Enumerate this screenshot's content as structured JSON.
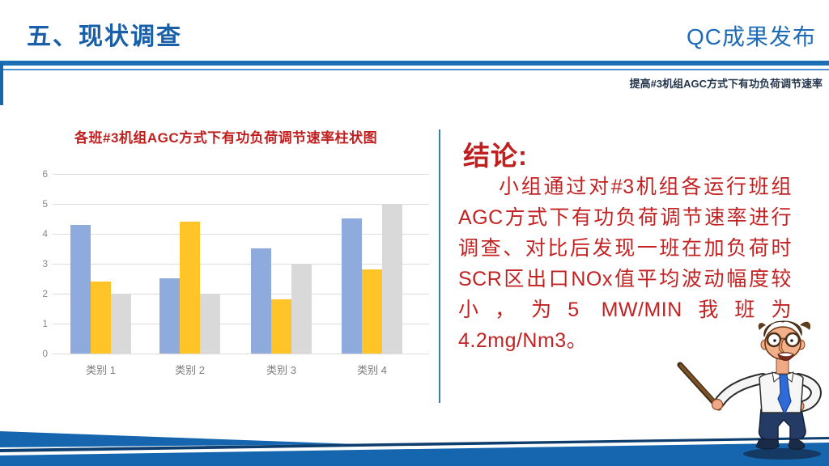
{
  "slide": {
    "title": "五、现状调查",
    "brand": "QC成果发布",
    "subtitle": "提高#3机组AGC方式下有功负荷调节速率"
  },
  "chart_data": {
    "type": "bar",
    "title": "各班#3机组AGC方式下有功负荷调节速率柱状图",
    "categories": [
      "类别 1",
      "类别 2",
      "类别 3",
      "类别 4"
    ],
    "series": [
      {
        "color": "#8FAADC",
        "values": [
          4.3,
          2.5,
          3.5,
          4.5
        ]
      },
      {
        "color": "#FFC428",
        "values": [
          2.4,
          4.4,
          1.8,
          2.8
        ]
      },
      {
        "color": "#D9D9D9",
        "values": [
          2.0,
          2.0,
          3.0,
          5.0
        ]
      }
    ],
    "xlabel": "",
    "ylabel": "",
    "ylim": [
      0,
      6
    ],
    "yticks": [
      0,
      1,
      2,
      3,
      4,
      5,
      6
    ],
    "grid": true,
    "legend_position": "none"
  },
  "conclusion": {
    "heading": "结论:",
    "body": "小组通过对#3机组各运行班组AGC方式下有功负荷调节速率进行调查、对比后发现一班在加负荷时SCR区出口NOx值平均波动幅度较小，为5 MW/MIN我班为4.2mg/Nm3。"
  },
  "colors": {
    "title_blue": "#1A5FA8",
    "brand_blue": "#1E6CB8",
    "header_line_blue": "#1C6FB5",
    "red_text": "#C01F1F",
    "divider_teal": "#38809F",
    "bar_blue": "#8FAADC",
    "bar_yellow": "#FFC428",
    "bar_gray": "#D9D9D9",
    "bottom_band_blue": "#1566AF",
    "bottom_edge_navy": "#0E3E6E"
  }
}
